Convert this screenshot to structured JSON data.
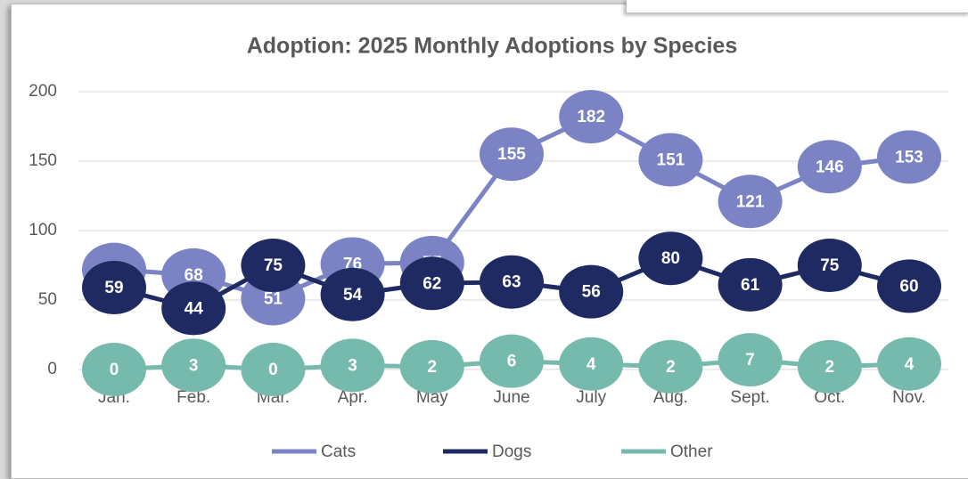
{
  "chart_data": {
    "type": "line",
    "title": "Adoption: 2025 Monthly Adoptions by Species",
    "categories": [
      "Jan.",
      "Feb.",
      "Mar.",
      "Apr.",
      "May",
      "June",
      "July",
      "Aug.",
      "Sept.",
      "Oct.",
      "Nov."
    ],
    "series": [
      {
        "name": "Cats",
        "color": "#7b83c4",
        "values": [
          72,
          68,
          51,
          76,
          77,
          155,
          182,
          151,
          121,
          146,
          153
        ]
      },
      {
        "name": "Dogs",
        "color": "#1f2a63",
        "values": [
          59,
          44,
          75,
          54,
          62,
          63,
          56,
          80,
          61,
          75,
          60
        ]
      },
      {
        "name": "Other",
        "color": "#76b9ad",
        "values": [
          0,
          3,
          0,
          3,
          2,
          6,
          4,
          2,
          7,
          2,
          4
        ]
      }
    ],
    "ylim": [
      0,
      200
    ],
    "yticks": [
      0,
      50,
      100,
      150,
      200
    ],
    "grid": true,
    "legend": "bottom"
  }
}
